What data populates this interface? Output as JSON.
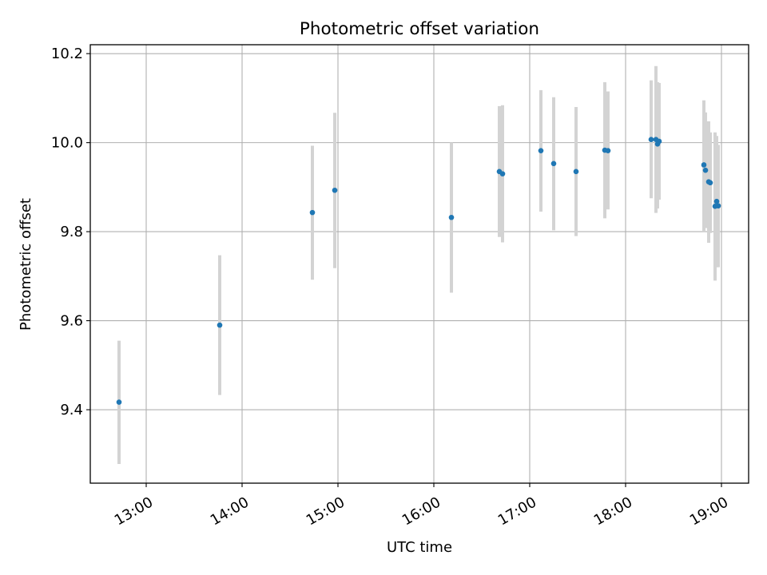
{
  "chart_data": {
    "type": "scatter",
    "title": "Photometric offset variation",
    "xlabel": "UTC time",
    "ylabel": "Photometric offset",
    "x_ticks": [
      "13:00",
      "14:00",
      "15:00",
      "16:00",
      "17:00",
      "18:00",
      "19:00"
    ],
    "y_ticks": [
      "9.4",
      "9.6",
      "9.8",
      "10.0",
      "10.2"
    ],
    "xlim": [
      "12:25",
      "19:17"
    ],
    "ylim": [
      9.235,
      10.22
    ],
    "grid": true,
    "colors": {
      "marker": "#1f77b4",
      "errorbar": "#d3d3d3",
      "grid": "#b0b0b0"
    },
    "points": [
      {
        "t": "12:43",
        "y": 9.417,
        "lo": 9.278,
        "hi": 9.555
      },
      {
        "t": "13:46",
        "y": 9.59,
        "lo": 9.433,
        "hi": 9.747
      },
      {
        "t": "14:44",
        "y": 9.843,
        "lo": 9.692,
        "hi": 9.993
      },
      {
        "t": "14:58",
        "y": 9.893,
        "lo": 9.718,
        "hi": 10.067
      },
      {
        "t": "16:11",
        "y": 9.832,
        "lo": 9.663,
        "hi": 10.0
      },
      {
        "t": "16:41",
        "y": 9.935,
        "lo": 9.788,
        "hi": 10.082
      },
      {
        "t": "16:43",
        "y": 9.93,
        "lo": 9.776,
        "hi": 10.084
      },
      {
        "t": "17:07",
        "y": 9.982,
        "lo": 9.845,
        "hi": 10.118
      },
      {
        "t": "17:15",
        "y": 9.953,
        "lo": 9.803,
        "hi": 10.102
      },
      {
        "t": "17:29",
        "y": 9.935,
        "lo": 9.79,
        "hi": 10.08
      },
      {
        "t": "17:47",
        "y": 9.983,
        "lo": 9.83,
        "hi": 10.136
      },
      {
        "t": "17:49",
        "y": 9.982,
        "lo": 9.85,
        "hi": 10.115
      },
      {
        "t": "18:16",
        "y": 10.007,
        "lo": 9.875,
        "hi": 10.14
      },
      {
        "t": "18:19",
        "y": 10.007,
        "lo": 9.842,
        "hi": 10.172
      },
      {
        "t": "18:20",
        "y": 9.997,
        "lo": 9.852,
        "hi": 10.136
      },
      {
        "t": "18:21",
        "y": 10.003,
        "lo": 9.872,
        "hi": 10.134
      },
      {
        "t": "18:49",
        "y": 9.95,
        "lo": 9.8,
        "hi": 10.095
      },
      {
        "t": "18:50",
        "y": 9.938,
        "lo": 9.808,
        "hi": 10.068
      },
      {
        "t": "18:52",
        "y": 9.912,
        "lo": 9.775,
        "hi": 10.048
      },
      {
        "t": "18:53",
        "y": 9.91,
        "lo": 9.797,
        "hi": 10.023
      },
      {
        "t": "18:56",
        "y": 9.857,
        "lo": 9.69,
        "hi": 10.023
      },
      {
        "t": "18:57",
        "y": 9.868,
        "lo": 9.72,
        "hi": 10.015
      },
      {
        "t": "18:58",
        "y": 9.858,
        "lo": 9.72,
        "hi": 9.995
      }
    ]
  }
}
